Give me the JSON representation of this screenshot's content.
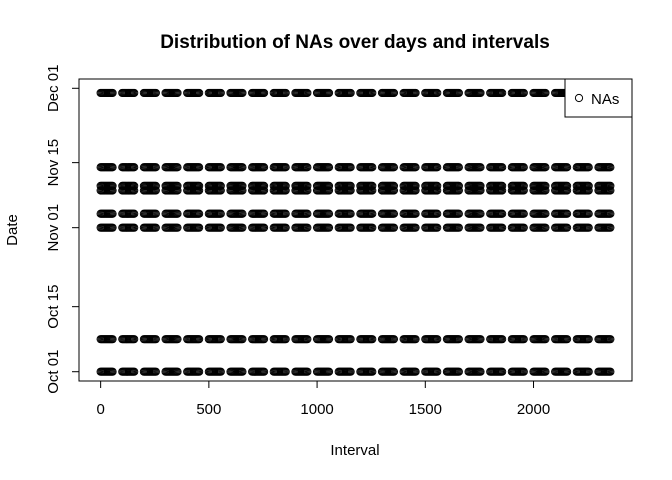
{
  "chart_data": {
    "type": "scatter",
    "title": "Distribution of NAs over days and intervals",
    "xlabel": "Interval",
    "ylabel": "Date",
    "xlim": [
      -100,
      2455
    ],
    "ylim": [
      "2012-09-29",
      "2012-12-03"
    ],
    "x_ticks": [
      0,
      500,
      1000,
      1500,
      2000
    ],
    "y_ticks": [
      {
        "date": "2012-10-01",
        "label": "Oct 01"
      },
      {
        "date": "2012-10-15",
        "label": "Oct 15"
      },
      {
        "date": "2012-11-01",
        "label": "Nov 01"
      },
      {
        "date": "2012-11-15",
        "label": "Nov 15"
      },
      {
        "date": "2012-12-01",
        "label": "Dec 01"
      }
    ],
    "grid": false,
    "legend": {
      "position": "top-right",
      "entries": [
        "NAs"
      ]
    },
    "series": [
      {
        "name": "NAs",
        "marker": "open-circle",
        "color": "#000000",
        "dates": [
          "2012-10-01",
          "2012-10-08",
          "2012-11-01",
          "2012-11-04",
          "2012-11-09",
          "2012-11-10",
          "2012-11-14",
          "2012-11-30"
        ],
        "x_pattern": "interval = 100*hour + minute, minute in 0..55 step 5, hour in 0..23"
      }
    ]
  }
}
